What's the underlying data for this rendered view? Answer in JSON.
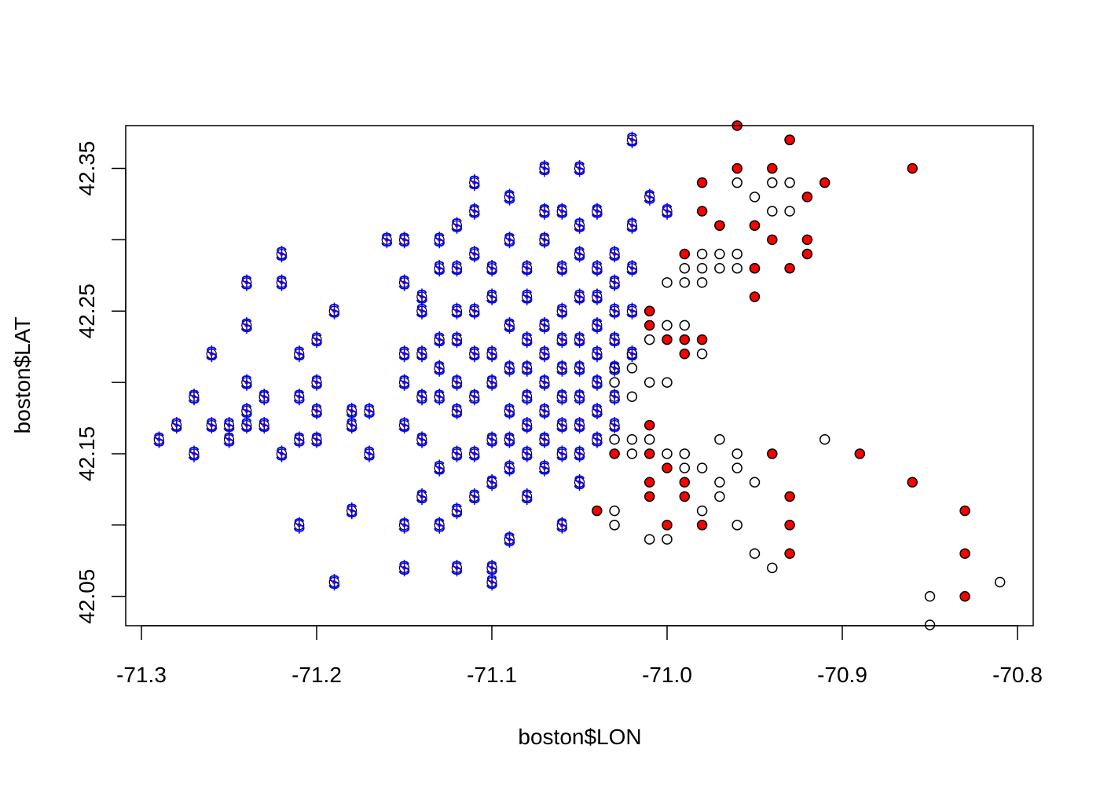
{
  "chart_data": {
    "type": "scatter",
    "title": "",
    "xlabel": "boston$LON",
    "ylabel": "boston$LAT",
    "xlim": [
      -71.3,
      -70.8
    ],
    "ylim": [
      42.03,
      42.38
    ],
    "grid": false,
    "xticks": [
      {
        "value": -71.3,
        "label": "-71.3"
      },
      {
        "value": -71.2,
        "label": "-71.2"
      },
      {
        "value": -71.1,
        "label": "-71.1"
      },
      {
        "value": -71.0,
        "label": "-71.0"
      },
      {
        "value": -70.9,
        "label": "-70.9"
      },
      {
        "value": -70.8,
        "label": "-70.8"
      }
    ],
    "yticks": [
      {
        "value": 42.05,
        "label": "42.05"
      },
      {
        "value": 42.1,
        "label": ""
      },
      {
        "value": 42.15,
        "label": "42.15"
      },
      {
        "value": 42.2,
        "label": ""
      },
      {
        "value": 42.25,
        "label": "42.25"
      },
      {
        "value": 42.3,
        "label": ""
      },
      {
        "value": 42.35,
        "label": "42.35"
      }
    ],
    "colors": {
      "open_point": "#000000",
      "filled_point": "#ff0000",
      "dollar_marker": "#0000ff"
    },
    "marker_symbol": "$",
    "series": [
      {
        "marker": "open-circle",
        "points": [
          [
            -71.02,
            42.19
          ],
          [
            -71.01,
            42.2
          ],
          [
            -71.0,
            42.2
          ],
          [
            -71.01,
            42.23
          ],
          [
            -71.0,
            42.24
          ],
          [
            -70.99,
            42.24
          ],
          [
            -70.98,
            42.22
          ],
          [
            -71.01,
            42.25
          ],
          [
            -71.0,
            42.27
          ],
          [
            -70.99,
            42.28
          ],
          [
            -70.98,
            42.28
          ],
          [
            -70.97,
            42.28
          ],
          [
            -70.96,
            42.28
          ],
          [
            -70.95,
            42.28
          ],
          [
            -70.98,
            42.29
          ],
          [
            -70.97,
            42.29
          ],
          [
            -70.96,
            42.29
          ],
          [
            -70.95,
            42.31
          ],
          [
            -70.94,
            42.32
          ],
          [
            -70.93,
            42.32
          ],
          [
            -70.92,
            42.33
          ],
          [
            -70.94,
            42.34
          ],
          [
            -70.93,
            42.34
          ],
          [
            -70.95,
            42.33
          ],
          [
            -70.96,
            42.34
          ],
          [
            -70.97,
            42.31
          ],
          [
            -70.98,
            42.27
          ],
          [
            -70.99,
            42.27
          ],
          [
            -71.0,
            42.15
          ],
          [
            -70.99,
            42.15
          ],
          [
            -70.98,
            42.14
          ],
          [
            -70.97,
            42.13
          ],
          [
            -70.96,
            42.14
          ],
          [
            -70.95,
            42.13
          ],
          [
            -70.97,
            42.16
          ],
          [
            -70.96,
            42.15
          ],
          [
            -71.01,
            42.16
          ],
          [
            -71.02,
            42.16
          ],
          [
            -71.03,
            42.16
          ],
          [
            -71.02,
            42.15
          ],
          [
            -71.03,
            42.11
          ],
          [
            -71.03,
            42.1
          ],
          [
            -71.01,
            42.09
          ],
          [
            -71.0,
            42.09
          ],
          [
            -70.99,
            42.14
          ],
          [
            -70.98,
            42.11
          ],
          [
            -70.97,
            42.12
          ],
          [
            -70.96,
            42.1
          ],
          [
            -70.95,
            42.08
          ],
          [
            -70.94,
            42.07
          ],
          [
            -70.91,
            42.16
          ],
          [
            -70.85,
            42.05
          ],
          [
            -70.85,
            42.03
          ],
          [
            -70.81,
            42.06
          ],
          [
            -71.02,
            42.21
          ],
          [
            -71.03,
            42.2
          ],
          [
            -71.03,
            42.21
          ],
          [
            -71.02,
            42.22
          ]
        ]
      },
      {
        "marker": "filled-red-circle",
        "points": [
          [
            -70.96,
            42.38
          ],
          [
            -70.93,
            42.37
          ],
          [
            -70.93,
            42.37
          ],
          [
            -70.98,
            42.34
          ],
          [
            -70.96,
            42.35
          ],
          [
            -70.94,
            42.35
          ],
          [
            -70.92,
            42.33
          ],
          [
            -70.91,
            42.34
          ],
          [
            -70.86,
            42.35
          ],
          [
            -70.98,
            42.32
          ],
          [
            -70.97,
            42.31
          ],
          [
            -70.95,
            42.31
          ],
          [
            -70.94,
            42.3
          ],
          [
            -70.92,
            42.3
          ],
          [
            -70.92,
            42.29
          ],
          [
            -70.93,
            42.28
          ],
          [
            -70.95,
            42.28
          ],
          [
            -70.99,
            42.29
          ],
          [
            -70.95,
            42.26
          ],
          [
            -71.01,
            42.25
          ],
          [
            -71.01,
            42.24
          ],
          [
            -71.0,
            42.23
          ],
          [
            -70.99,
            42.23
          ],
          [
            -70.99,
            42.22
          ],
          [
            -70.98,
            42.23
          ],
          [
            -71.03,
            42.15
          ],
          [
            -71.01,
            42.17
          ],
          [
            -71.01,
            42.15
          ],
          [
            -71.0,
            42.14
          ],
          [
            -70.99,
            42.13
          ],
          [
            -71.01,
            42.13
          ],
          [
            -71.01,
            42.12
          ],
          [
            -70.99,
            42.12
          ],
          [
            -71.0,
            42.1
          ],
          [
            -71.04,
            42.11
          ],
          [
            -70.98,
            42.1
          ],
          [
            -70.94,
            42.15
          ],
          [
            -70.93,
            42.12
          ],
          [
            -70.93,
            42.1
          ],
          [
            -70.93,
            42.08
          ],
          [
            -70.89,
            42.15
          ],
          [
            -70.86,
            42.13
          ],
          [
            -70.83,
            42.11
          ],
          [
            -70.83,
            42.08
          ],
          [
            -70.83,
            42.05
          ]
        ]
      },
      {
        "marker": "blue-dollar",
        "points": [
          [
            -71.29,
            42.16
          ],
          [
            -71.28,
            42.17
          ],
          [
            -71.27,
            42.15
          ],
          [
            -71.27,
            42.19
          ],
          [
            -71.26,
            42.17
          ],
          [
            -71.26,
            42.22
          ],
          [
            -71.25,
            42.17
          ],
          [
            -71.25,
            42.16
          ],
          [
            -71.24,
            42.18
          ],
          [
            -71.24,
            42.17
          ],
          [
            -71.24,
            42.2
          ],
          [
            -71.24,
            42.24
          ],
          [
            -71.24,
            42.27
          ],
          [
            -71.23,
            42.17
          ],
          [
            -71.23,
            42.19
          ],
          [
            -71.22,
            42.29
          ],
          [
            -71.22,
            42.27
          ],
          [
            -71.22,
            42.15
          ],
          [
            -71.21,
            42.19
          ],
          [
            -71.21,
            42.16
          ],
          [
            -71.21,
            42.1
          ],
          [
            -71.21,
            42.22
          ],
          [
            -71.2,
            42.18
          ],
          [
            -71.2,
            42.16
          ],
          [
            -71.2,
            42.2
          ],
          [
            -71.2,
            42.23
          ],
          [
            -71.19,
            42.06
          ],
          [
            -71.19,
            42.25
          ],
          [
            -71.18,
            42.18
          ],
          [
            -71.18,
            42.11
          ],
          [
            -71.18,
            42.17
          ],
          [
            -71.17,
            42.15
          ],
          [
            -71.17,
            42.18
          ],
          [
            -71.16,
            42.3
          ],
          [
            -71.15,
            42.1
          ],
          [
            -71.15,
            42.3
          ],
          [
            -71.15,
            42.27
          ],
          [
            -71.15,
            42.22
          ],
          [
            -71.15,
            42.2
          ],
          [
            -71.15,
            42.17
          ],
          [
            -71.15,
            42.07
          ],
          [
            -71.14,
            42.26
          ],
          [
            -71.14,
            42.25
          ],
          [
            -71.14,
            42.22
          ],
          [
            -71.14,
            42.19
          ],
          [
            -71.14,
            42.16
          ],
          [
            -71.14,
            42.12
          ],
          [
            -71.13,
            42.23
          ],
          [
            -71.13,
            42.19
          ],
          [
            -71.13,
            42.21
          ],
          [
            -71.13,
            42.14
          ],
          [
            -71.13,
            42.1
          ],
          [
            -71.13,
            42.28
          ],
          [
            -71.13,
            42.3
          ],
          [
            -71.12,
            42.23
          ],
          [
            -71.12,
            42.2
          ],
          [
            -71.12,
            42.18
          ],
          [
            -71.12,
            42.15
          ],
          [
            -71.12,
            42.11
          ],
          [
            -71.12,
            42.07
          ],
          [
            -71.12,
            42.28
          ],
          [
            -71.12,
            42.25
          ],
          [
            -71.12,
            42.31
          ],
          [
            -71.11,
            42.22
          ],
          [
            -71.11,
            42.19
          ],
          [
            -71.11,
            42.25
          ],
          [
            -71.11,
            42.32
          ],
          [
            -71.11,
            42.29
          ],
          [
            -71.11,
            42.12
          ],
          [
            -71.11,
            42.15
          ],
          [
            -71.11,
            42.34
          ],
          [
            -71.1,
            42.22
          ],
          [
            -71.1,
            42.2
          ],
          [
            -71.1,
            42.16
          ],
          [
            -71.1,
            42.13
          ],
          [
            -71.1,
            42.07
          ],
          [
            -71.1,
            42.06
          ],
          [
            -71.1,
            42.28
          ],
          [
            -71.1,
            42.26
          ],
          [
            -71.09,
            42.24
          ],
          [
            -71.09,
            42.21
          ],
          [
            -71.09,
            42.18
          ],
          [
            -71.09,
            42.16
          ],
          [
            -71.09,
            42.14
          ],
          [
            -71.09,
            42.3
          ],
          [
            -71.09,
            42.33
          ],
          [
            -71.09,
            42.09
          ],
          [
            -71.08,
            42.23
          ],
          [
            -71.08,
            42.21
          ],
          [
            -71.08,
            42.19
          ],
          [
            -71.08,
            42.17
          ],
          [
            -71.08,
            42.15
          ],
          [
            -71.08,
            42.26
          ],
          [
            -71.08,
            42.28
          ],
          [
            -71.08,
            42.12
          ],
          [
            -71.07,
            42.24
          ],
          [
            -71.07,
            42.22
          ],
          [
            -71.07,
            42.2
          ],
          [
            -71.07,
            42.18
          ],
          [
            -71.07,
            42.16
          ],
          [
            -71.07,
            42.3
          ],
          [
            -71.07,
            42.32
          ],
          [
            -71.07,
            42.35
          ],
          [
            -71.07,
            42.14
          ],
          [
            -71.06,
            42.23
          ],
          [
            -71.06,
            42.21
          ],
          [
            -71.06,
            42.19
          ],
          [
            -71.06,
            42.17
          ],
          [
            -71.06,
            42.15
          ],
          [
            -71.06,
            42.25
          ],
          [
            -71.06,
            42.28
          ],
          [
            -71.06,
            42.1
          ],
          [
            -71.06,
            42.32
          ],
          [
            -71.05,
            42.23
          ],
          [
            -71.05,
            42.21
          ],
          [
            -71.05,
            42.19
          ],
          [
            -71.05,
            42.17
          ],
          [
            -71.05,
            42.15
          ],
          [
            -71.05,
            42.26
          ],
          [
            -71.05,
            42.29
          ],
          [
            -71.05,
            42.31
          ],
          [
            -71.05,
            42.35
          ],
          [
            -71.05,
            42.13
          ],
          [
            -71.04,
            42.24
          ],
          [
            -71.04,
            42.22
          ],
          [
            -71.04,
            42.2
          ],
          [
            -71.04,
            42.18
          ],
          [
            -71.04,
            42.16
          ],
          [
            -71.04,
            42.26
          ],
          [
            -71.04,
            42.28
          ],
          [
            -71.04,
            42.32
          ],
          [
            -71.03,
            42.25
          ],
          [
            -71.03,
            42.23
          ],
          [
            -71.03,
            42.21
          ],
          [
            -71.03,
            42.19
          ],
          [
            -71.03,
            42.17
          ],
          [
            -71.03,
            42.27
          ],
          [
            -71.03,
            42.29
          ],
          [
            -71.02,
            42.25
          ],
          [
            -71.02,
            42.22
          ],
          [
            -71.02,
            42.28
          ],
          [
            -71.02,
            42.37
          ],
          [
            -71.02,
            42.31
          ],
          [
            -71.01,
            42.33
          ],
          [
            -71.0,
            42.32
          ]
        ]
      }
    ]
  }
}
